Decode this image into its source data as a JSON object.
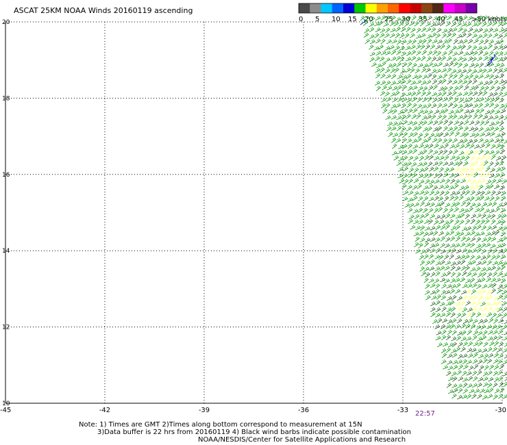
{
  "title": "ASCAT 25KM NOAA Winds 20160119 ascending",
  "legend": {
    "swatches": [
      "#4a4a4a",
      "#8c8c8c",
      "#00c8ff",
      "#0064ff",
      "#0000d2",
      "#00c800",
      "#ffff00",
      "#ffa000",
      "#ff6400",
      "#ff0000",
      "#c80000",
      "#8b4513",
      "#502814",
      "#ff00ff",
      "#c800c8",
      "#7800aa"
    ],
    "labels": [
      "0",
      "5",
      "10",
      "15",
      "20",
      "25",
      "30",
      "35",
      "40",
      "45",
      ">50 knots"
    ]
  },
  "axes": {
    "lon_ticks": [
      "-45",
      "-42",
      "-39",
      "-36",
      "-33",
      "-30"
    ],
    "lat_ticks": [
      "20",
      "18",
      "16",
      "14",
      "12",
      "10"
    ],
    "lon_range": [
      -45,
      -30
    ],
    "lat_range": [
      10,
      20
    ],
    "grid": true
  },
  "time_label": "22:57",
  "notes": {
    "line1": "Note: 1) Times are GMT 2)Times along bottom correspond to measurement at 15N",
    "line2": "3)Data buffer is 22 hrs from 20160119 4) Black wind barbs indicate possible contamination",
    "line3": "NOAA/NESDIS/Center for Satellite Applications and Research"
  },
  "wind_field": {
    "dominant_speed_knots": "15-20",
    "colors": {
      "main": "#009600",
      "dark": "#1a5a1a",
      "yellow": "#ffff66",
      "blue": "#0000c8"
    }
  }
}
